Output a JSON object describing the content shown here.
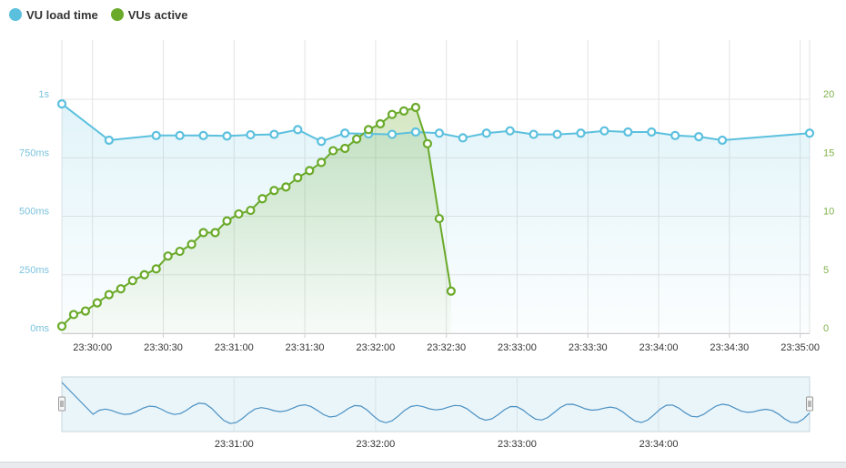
{
  "legend": {
    "series": [
      {
        "label": "VU load time",
        "color": "#5bc0de"
      },
      {
        "label": "VUs active",
        "color": "#6aaa2a"
      }
    ]
  },
  "chart_data": {
    "type": "line",
    "x_tick_labels": [
      "23:30:00",
      "23:30:30",
      "23:31:00",
      "23:31:30",
      "23:32:00",
      "23:32:30",
      "23:33:00",
      "23:33:30",
      "23:34:00",
      "23:34:30",
      "23:35:00"
    ],
    "y_left": {
      "ticks": [
        "0ms",
        "250ms",
        "500ms",
        "750ms",
        "1s"
      ],
      "range_ms": [
        0,
        1000
      ],
      "color": "#5bc0de"
    },
    "y_right": {
      "ticks": [
        "0",
        "5",
        "10",
        "15",
        "20"
      ],
      "range": [
        0,
        20
      ],
      "color": "#6aaa2a"
    },
    "grid": true,
    "series": [
      {
        "name": "VU load time",
        "color": "#5bc0de",
        "points": [
          [
            "23:29:47",
            980
          ],
          [
            "23:30:07",
            825
          ],
          [
            "23:30:27",
            845
          ],
          [
            "23:30:37",
            845
          ],
          [
            "23:30:47",
            845
          ],
          [
            "23:30:57",
            843
          ],
          [
            "23:31:07",
            848
          ],
          [
            "23:31:17",
            850
          ],
          [
            "23:31:27",
            870
          ],
          [
            "23:31:37",
            820
          ],
          [
            "23:31:47",
            855
          ],
          [
            "23:31:57",
            852
          ],
          [
            "23:32:07",
            850
          ],
          [
            "23:32:17",
            860
          ],
          [
            "23:32:27",
            855
          ],
          [
            "23:32:37",
            835
          ],
          [
            "23:32:47",
            855
          ],
          [
            "23:32:57",
            865
          ],
          [
            "23:33:07",
            850
          ],
          [
            "23:33:17",
            850
          ],
          [
            "23:33:27",
            855
          ],
          [
            "23:33:37",
            865
          ],
          [
            "23:33:47",
            860
          ],
          [
            "23:33:57",
            860
          ],
          [
            "23:34:07",
            845
          ],
          [
            "23:34:17",
            840
          ],
          [
            "23:34:27",
            825
          ],
          [
            "23:35:04",
            855
          ]
        ]
      },
      {
        "name": "VUs active",
        "color": "#6aaa2a",
        "points": [
          [
            "23:29:47",
            0.6
          ],
          [
            "23:29:52",
            1.6
          ],
          [
            "23:29:57",
            1.9
          ],
          [
            "23:30:02",
            2.6
          ],
          [
            "23:30:07",
            3.3
          ],
          [
            "23:30:12",
            3.8
          ],
          [
            "23:30:17",
            4.5
          ],
          [
            "23:30:22",
            5.0
          ],
          [
            "23:30:27",
            5.5
          ],
          [
            "23:30:32",
            6.6
          ],
          [
            "23:30:37",
            7.0
          ],
          [
            "23:30:42",
            7.6
          ],
          [
            "23:30:47",
            8.6
          ],
          [
            "23:30:52",
            8.6
          ],
          [
            "23:30:57",
            9.6
          ],
          [
            "23:31:02",
            10.2
          ],
          [
            "23:31:07",
            10.5
          ],
          [
            "23:31:12",
            11.5
          ],
          [
            "23:31:17",
            12.2
          ],
          [
            "23:31:22",
            12.5
          ],
          [
            "23:31:27",
            13.3
          ],
          [
            "23:31:32",
            13.9
          ],
          [
            "23:31:37",
            14.6
          ],
          [
            "23:31:42",
            15.6
          ],
          [
            "23:31:47",
            15.8
          ],
          [
            "23:31:52",
            16.6
          ],
          [
            "23:31:57",
            17.4
          ],
          [
            "23:32:02",
            17.9
          ],
          [
            "23:32:07",
            18.7
          ],
          [
            "23:32:12",
            19.0
          ],
          [
            "23:32:17",
            19.3
          ],
          [
            "23:32:22",
            16.2
          ],
          [
            "23:32:27",
            9.8
          ],
          [
            "23:32:32",
            3.6
          ]
        ]
      }
    ]
  },
  "navigator": {
    "tick_labels": [
      "23:31:00",
      "23:32:00",
      "23:33:00",
      "23:34:00"
    ]
  }
}
